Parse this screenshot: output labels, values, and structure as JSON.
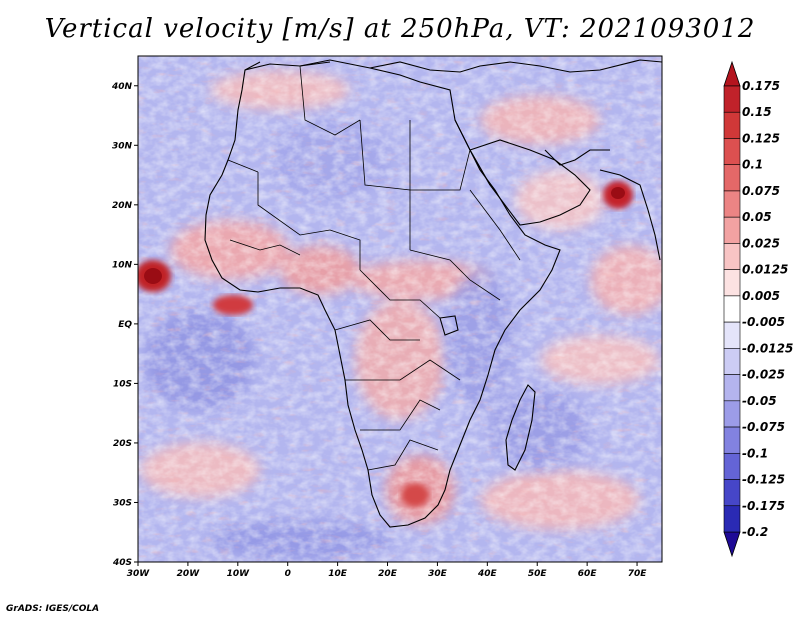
{
  "title": "Vertical velocity [m/s] at 250hPa, VT: 2021093012",
  "footer": "GrADS: IGES/COLA",
  "lat_labels": [
    "40N",
    "30N",
    "20N",
    "10N",
    "EQ",
    "10S",
    "20S",
    "30S",
    "40S"
  ],
  "lat_values": [
    40,
    30,
    20,
    10,
    0,
    -10,
    -20,
    -30,
    -40
  ],
  "lon_labels": [
    "30W",
    "20W",
    "10W",
    "0",
    "10E",
    "20E",
    "30E",
    "40E",
    "50E",
    "60E",
    "70E"
  ],
  "lon_values": [
    -30,
    -20,
    -10,
    0,
    10,
    20,
    30,
    40,
    50,
    60,
    70
  ],
  "colorbar": {
    "labels": [
      "0.175",
      "0.15",
      "0.125",
      "0.1",
      "0.075",
      "0.05",
      "0.025",
      "0.0125",
      "0.005",
      "-0.005",
      "-0.0125",
      "-0.025",
      "-0.05",
      "-0.075",
      "-0.1",
      "-0.125",
      "-0.175",
      "-0.2"
    ],
    "top_color": "#b4141e",
    "bottom_color": "#1e0a96",
    "colors": [
      "#c0222a",
      "#d03838",
      "#dc5050",
      "#e46868",
      "#ec8484",
      "#f2a2a2",
      "#f8c4c4",
      "#fce2e2",
      "#ffffff",
      "#e4e4fa",
      "#ccccf4",
      "#b4b4ee",
      "#9c9ce8",
      "#8282e0",
      "#6464d6",
      "#4646c8",
      "#2a2ab4",
      "#1a14a0"
    ]
  },
  "colors": {
    "field_base": "#b3b6ef",
    "positive": "#f08a8a",
    "strong_positive": "#b8141c",
    "negative": "#7878dc",
    "coast": "#000000"
  }
}
